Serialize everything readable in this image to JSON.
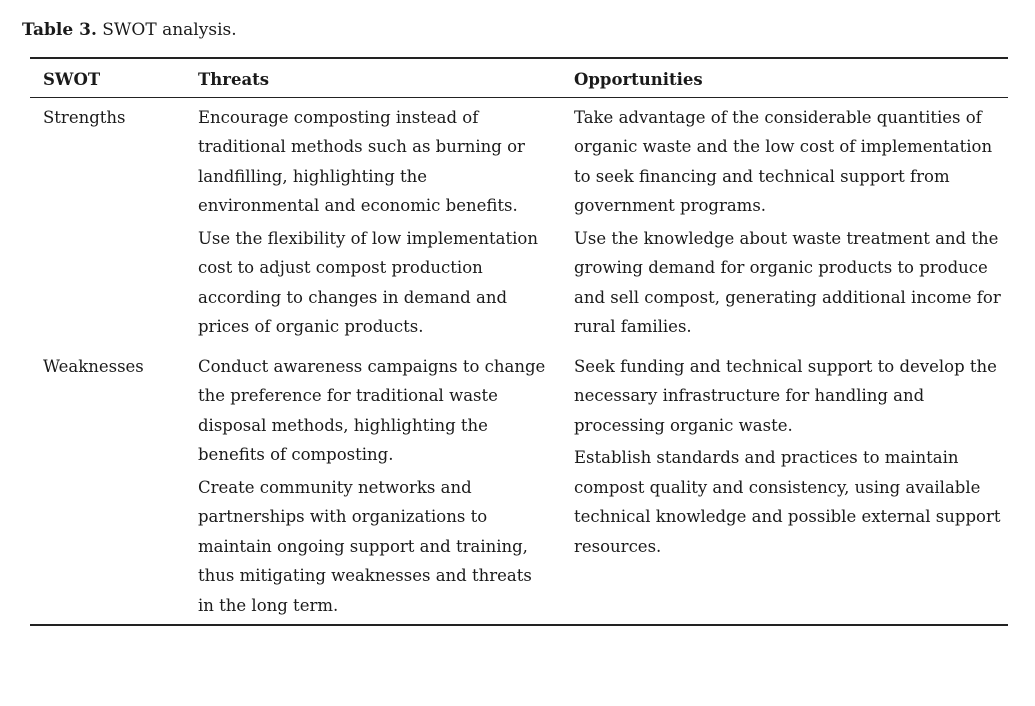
{
  "caption": {
    "label": "Table 3.",
    "text": "SWOT analysis."
  },
  "table": {
    "headers": [
      "SWOT",
      "Threats",
      "Opportunities"
    ],
    "rows": [
      {
        "swot": "Strengths",
        "threats": [
          "Encourage composting instead of traditional methods such as burning or landfilling, highlighting the environmental and economic benefits.",
          "Use the flexibility of low implementation cost to adjust compost production according to changes in demand and prices of organic products."
        ],
        "opportunities": [
          "Take advantage of the considerable quantities of organic waste and the low cost of implementation to seek financing and technical support from government programs.",
          "Use the knowledge about waste treatment and the growing demand for organic products to produce and sell compost, generating additional income for rural families."
        ]
      },
      {
        "swot": "Weaknesses",
        "threats": [
          "Conduct awareness campaigns to change the preference for traditional waste disposal methods, highlighting the benefits of composting.",
          "Create community networks and partnerships with organizations to maintain ongoing support and training, thus mitigating weaknesses and threats in the long term."
        ],
        "opportunities": [
          "Seek funding and technical support to develop the necessary infrastructure for handling and processing organic waste.",
          "Establish standards and practices to maintain compost quality and consistency, using available technical knowledge and possible external support resources."
        ]
      }
    ]
  }
}
